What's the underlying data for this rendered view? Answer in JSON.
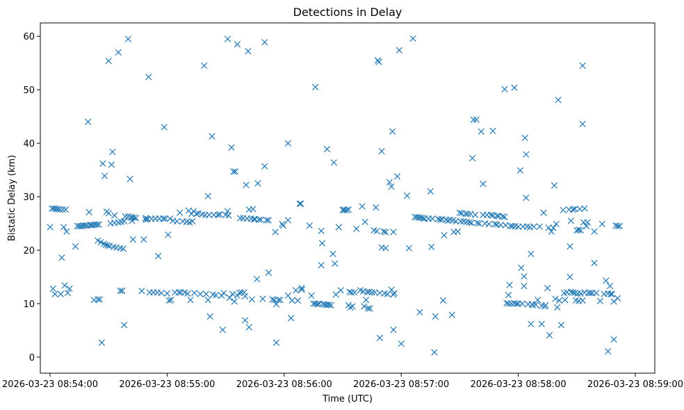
{
  "chart_data": {
    "type": "scatter",
    "title": "Detections in Delay",
    "xlabel": "Time (UTC)",
    "ylabel": "Bistatic Delay (km)",
    "marker": "x",
    "color": "#1f77b4",
    "x_unit": "seconds since 2026-03-23 08:54:00",
    "xlim": [
      -5,
      310
    ],
    "ylim": [
      -3,
      62.5
    ],
    "x_ticks": [
      {
        "value": 0,
        "label": "2026-03-23 08:54:00"
      },
      {
        "value": 60,
        "label": "2026-03-23 08:55:00"
      },
      {
        "value": 120,
        "label": "2026-03-23 08:56:00"
      },
      {
        "value": 180,
        "label": "2026-03-23 08:57:00"
      },
      {
        "value": 240,
        "label": "2026-03-23 08:58:00"
      },
      {
        "value": 300,
        "label": "2026-03-23 08:59:00"
      }
    ],
    "y_ticks": [
      {
        "value": 0,
        "label": "0"
      },
      {
        "value": 10,
        "label": "10"
      },
      {
        "value": 20,
        "label": "20"
      },
      {
        "value": 30,
        "label": "30"
      },
      {
        "value": 40,
        "label": "40"
      },
      {
        "value": 50,
        "label": "50"
      },
      {
        "value": 60,
        "label": "60"
      }
    ],
    "points": [
      [
        0,
        24.3
      ],
      [
        1,
        27.8
      ],
      [
        1.5,
        12.8
      ],
      [
        2,
        27.8
      ],
      [
        2.5,
        11.8
      ],
      [
        3,
        27.7
      ],
      [
        4,
        27.7
      ],
      [
        5,
        27.6
      ],
      [
        5.5,
        11.8
      ],
      [
        6,
        18.6
      ],
      [
        6.5,
        27.6
      ],
      [
        7,
        24.3
      ],
      [
        7.5,
        13.4
      ],
      [
        8,
        27.6
      ],
      [
        8.5,
        23.5
      ],
      [
        9,
        12.0
      ],
      [
        10,
        12.8
      ],
      [
        13,
        20.7
      ],
      [
        14,
        24.5
      ],
      [
        15,
        24.5
      ],
      [
        16,
        24.5
      ],
      [
        17,
        24.6
      ],
      [
        18,
        24.6
      ],
      [
        19,
        24.6
      ],
      [
        19.5,
        44.0
      ],
      [
        20,
        27.1
      ],
      [
        20.5,
        24.7
      ],
      [
        21,
        24.7
      ],
      [
        22,
        24.7
      ],
      [
        22.5,
        10.7
      ],
      [
        23,
        24.8
      ],
      [
        24,
        24.8
      ],
      [
        24.5,
        10.8
      ],
      [
        25,
        24.8
      ],
      [
        24.5,
        21.8
      ],
      [
        25.5,
        10.8
      ],
      [
        26,
        21.5
      ],
      [
        26.5,
        2.7
      ],
      [
        27,
        36.2
      ],
      [
        27.5,
        21.2
      ],
      [
        28,
        33.9
      ],
      [
        28.5,
        21.0
      ],
      [
        29,
        27.2
      ],
      [
        29.5,
        20.9
      ],
      [
        30,
        26.9
      ],
      [
        30,
        55.4
      ],
      [
        30.5,
        20.8
      ],
      [
        31,
        25.0
      ],
      [
        31.5,
        36.0
      ],
      [
        32,
        38.4
      ],
      [
        32.5,
        20.6
      ],
      [
        33,
        26.5
      ],
      [
        33,
        25.1
      ],
      [
        34,
        20.5
      ],
      [
        35,
        57.0
      ],
      [
        35,
        25.2
      ],
      [
        36,
        20.4
      ],
      [
        36,
        12.4
      ],
      [
        36.5,
        25.3
      ],
      [
        37,
        12.4
      ],
      [
        37.5,
        20.3
      ],
      [
        38,
        6.0
      ],
      [
        38,
        25.4
      ],
      [
        38.5,
        26.3
      ],
      [
        40,
        59.5
      ],
      [
        40,
        26.3
      ],
      [
        41,
        33.3
      ],
      [
        41.5,
        26.2
      ],
      [
        42,
        26.1
      ],
      [
        42,
        25.5
      ],
      [
        42.5,
        22.0
      ],
      [
        43,
        26.1
      ],
      [
        44,
        26.0
      ],
      [
        47,
        12.4
      ],
      [
        48,
        22.0
      ],
      [
        49,
        26.0
      ],
      [
        49,
        25.7
      ],
      [
        50,
        25.8
      ],
      [
        50.5,
        52.4
      ],
      [
        51,
        12.1
      ],
      [
        52,
        25.9
      ],
      [
        53,
        12.1
      ],
      [
        54,
        25.9
      ],
      [
        55,
        12.1
      ],
      [
        55.5,
        18.9
      ],
      [
        56,
        25.9
      ],
      [
        57,
        12.0
      ],
      [
        58,
        25.9
      ],
      [
        58.5,
        43.0
      ],
      [
        59,
        25.9
      ],
      [
        60,
        11.9
      ],
      [
        60.5,
        22.9
      ],
      [
        61,
        10.6
      ],
      [
        61.5,
        25.9
      ],
      [
        62,
        10.7
      ],
      [
        63,
        25.5
      ],
      [
        64,
        12.1
      ],
      [
        65,
        25.4
      ],
      [
        66,
        12.1
      ],
      [
        66.5,
        27.0
      ],
      [
        67,
        12.1
      ],
      [
        68,
        25.4
      ],
      [
        69,
        12.1
      ],
      [
        70,
        25.3
      ],
      [
        70.5,
        11.9
      ],
      [
        71,
        27.4
      ],
      [
        71.5,
        25.2
      ],
      [
        72,
        10.7
      ],
      [
        72.5,
        26.8
      ],
      [
        73,
        25.4
      ],
      [
        73.5,
        27.3
      ],
      [
        74,
        12.0
      ],
      [
        75,
        26.8
      ],
      [
        76,
        26.9
      ],
      [
        77,
        11.8
      ],
      [
        78,
        26.7
      ],
      [
        79,
        54.5
      ],
      [
        79.5,
        26.6
      ],
      [
        80,
        11.8
      ],
      [
        81,
        30.1
      ],
      [
        81,
        10.7
      ],
      [
        81.5,
        26.6
      ],
      [
        82,
        7.6
      ],
      [
        83,
        41.3
      ],
      [
        83.5,
        11.7
      ],
      [
        84,
        26.6
      ],
      [
        85,
        11.6
      ],
      [
        86,
        26.6
      ],
      [
        87,
        26.7
      ],
      [
        88,
        11.5
      ],
      [
        88.5,
        5.1
      ],
      [
        89,
        12.0
      ],
      [
        90,
        26.6
      ],
      [
        91,
        27.3
      ],
      [
        91,
        59.5
      ],
      [
        91.5,
        26.5
      ],
      [
        92,
        11.1
      ],
      [
        93,
        39.2
      ],
      [
        93.5,
        11.8
      ],
      [
        94,
        34.7
      ],
      [
        94.5,
        10.4
      ],
      [
        95,
        34.7
      ],
      [
        96,
        58.5
      ],
      [
        96,
        11.5
      ],
      [
        97,
        12.0
      ],
      [
        97.5,
        26.0
      ],
      [
        98,
        12.1
      ],
      [
        99,
        26.0
      ],
      [
        99.5,
        12.1
      ],
      [
        100,
        11.4
      ],
      [
        100,
        6.9
      ],
      [
        100.5,
        32.2
      ],
      [
        101,
        25.9
      ],
      [
        101.5,
        57.2
      ],
      [
        102,
        27.6
      ],
      [
        102,
        5.6
      ],
      [
        103,
        25.9
      ],
      [
        103.5,
        10.8
      ],
      [
        104,
        27.7
      ],
      [
        104.5,
        25.8
      ],
      [
        105,
        25.8
      ],
      [
        106,
        14.6
      ],
      [
        106.5,
        32.5
      ],
      [
        107,
        25.7
      ],
      [
        108,
        25.7
      ],
      [
        109,
        10.9
      ],
      [
        110,
        58.9
      ],
      [
        110,
        35.7
      ],
      [
        111,
        25.6
      ],
      [
        112,
        25.6
      ],
      [
        112,
        15.8
      ],
      [
        114,
        10.8
      ],
      [
        115,
        10.7
      ],
      [
        115.5,
        23.4
      ],
      [
        116,
        2.7
      ],
      [
        116,
        9.9
      ],
      [
        117,
        10.7
      ],
      [
        118,
        10.7
      ],
      [
        119,
        24.9
      ],
      [
        119.5,
        24.6
      ],
      [
        122,
        40.0
      ],
      [
        122,
        25.6
      ],
      [
        122,
        11.5
      ],
      [
        123.5,
        7.3
      ],
      [
        124,
        10.6
      ],
      [
        126,
        12.5
      ],
      [
        127,
        10.6
      ],
      [
        128,
        28.7
      ],
      [
        128.5,
        28.7
      ],
      [
        129,
        12.6
      ],
      [
        129,
        12.9
      ],
      [
        133,
        24.6
      ],
      [
        134,
        11.5
      ],
      [
        135,
        10.0
      ],
      [
        136,
        50.5
      ],
      [
        136,
        10.0
      ],
      [
        137,
        9.9
      ],
      [
        138,
        10.0
      ],
      [
        139,
        23.6
      ],
      [
        139,
        17.2
      ],
      [
        139.5,
        21.3
      ],
      [
        140,
        9.9
      ],
      [
        141,
        9.8
      ],
      [
        142,
        38.9
      ],
      [
        142,
        9.8
      ],
      [
        143,
        9.8
      ],
      [
        144,
        9.7
      ],
      [
        145,
        19.3
      ],
      [
        145.5,
        36.4
      ],
      [
        146,
        17.5
      ],
      [
        146.5,
        11.7
      ],
      [
        148,
        24.3
      ],
      [
        149,
        12.5
      ],
      [
        150,
        27.5
      ],
      [
        150.5,
        27.6
      ],
      [
        151,
        27.5
      ],
      [
        152,
        27.5
      ],
      [
        153,
        27.6
      ],
      [
        153,
        9.7
      ],
      [
        153.5,
        12.2
      ],
      [
        154,
        9.3
      ],
      [
        154.5,
        12.1
      ],
      [
        155,
        9.5
      ],
      [
        156,
        12.1
      ],
      [
        157,
        24.0
      ],
      [
        159,
        12.5
      ],
      [
        160,
        28.2
      ],
      [
        160.5,
        12.3
      ],
      [
        161,
        9.5
      ],
      [
        161.5,
        25.3
      ],
      [
        162,
        10.7
      ],
      [
        162.5,
        12.2
      ],
      [
        163,
        9.1
      ],
      [
        163.5,
        12.2
      ],
      [
        164,
        9.1
      ],
      [
        165,
        12.1
      ],
      [
        166,
        23.7
      ],
      [
        166.5,
        12.1
      ],
      [
        167,
        28.0
      ],
      [
        167.5,
        23.6
      ],
      [
        168,
        55.5
      ],
      [
        168.5,
        55.2
      ],
      [
        169,
        12.0
      ],
      [
        169,
        3.6
      ],
      [
        170,
        38.5
      ],
      [
        170,
        20.5
      ],
      [
        171,
        23.5
      ],
      [
        171.5,
        11.9
      ],
      [
        172,
        23.4
      ],
      [
        172,
        20.4
      ],
      [
        173,
        11.8
      ],
      [
        174,
        32.7
      ],
      [
        175,
        31.9
      ],
      [
        175,
        12.6
      ],
      [
        175.5,
        42.2
      ],
      [
        176,
        23.4
      ],
      [
        176,
        11.7
      ],
      [
        176,
        5.1
      ],
      [
        176.5,
        12.0
      ],
      [
        178,
        33.8
      ],
      [
        179,
        57.4
      ],
      [
        180,
        2.5
      ],
      [
        183,
        30.2
      ],
      [
        184,
        20.4
      ],
      [
        186,
        59.6
      ],
      [
        187,
        26.2
      ],
      [
        188,
        26.2
      ],
      [
        189,
        26.1
      ],
      [
        189.5,
        8.4
      ],
      [
        190,
        26.1
      ],
      [
        191,
        26.0
      ],
      [
        192,
        25.9
      ],
      [
        194,
        25.9
      ],
      [
        195,
        31.0
      ],
      [
        195.5,
        20.6
      ],
      [
        196,
        25.9
      ],
      [
        197,
        0.9
      ],
      [
        197.5,
        7.6
      ],
      [
        199,
        25.8
      ],
      [
        200,
        25.7
      ],
      [
        201,
        25.8
      ],
      [
        201.5,
        10.6
      ],
      [
        202,
        22.8
      ],
      [
        203,
        25.7
      ],
      [
        204,
        25.5
      ],
      [
        205,
        25.7
      ],
      [
        206,
        7.9
      ],
      [
        206.5,
        25.6
      ],
      [
        207,
        23.4
      ],
      [
        208,
        25.4
      ],
      [
        209,
        23.5
      ],
      [
        210,
        27.0
      ],
      [
        210.5,
        25.4
      ],
      [
        211,
        26.9
      ],
      [
        212,
        25.4
      ],
      [
        213,
        26.8
      ],
      [
        213.5,
        25.3
      ],
      [
        214,
        26.8
      ],
      [
        215,
        25.2
      ],
      [
        215.5,
        26.8
      ],
      [
        216,
        25.1
      ],
      [
        216.5,
        37.2
      ],
      [
        217,
        44.4
      ],
      [
        218,
        26.6
      ],
      [
        218.5,
        44.4
      ],
      [
        219,
        25.1
      ],
      [
        220,
        25.0
      ],
      [
        221,
        42.2
      ],
      [
        222,
        26.6
      ],
      [
        222,
        32.4
      ],
      [
        223,
        25.0
      ],
      [
        224,
        26.6
      ],
      [
        225,
        24.9
      ],
      [
        226,
        26.6
      ],
      [
        227,
        26.5
      ],
      [
        227,
        42.3
      ],
      [
        228,
        24.9
      ],
      [
        229,
        26.4
      ],
      [
        229,
        24.8
      ],
      [
        230,
        26.4
      ],
      [
        231,
        24.7
      ],
      [
        232,
        26.3
      ],
      [
        233,
        26.2
      ],
      [
        233,
        50.1
      ],
      [
        233.5,
        24.7
      ],
      [
        234,
        10.1
      ],
      [
        235,
        11.6
      ],
      [
        235,
        10.0
      ],
      [
        235.5,
        13.5
      ],
      [
        236,
        24.5
      ],
      [
        236.5,
        10.0
      ],
      [
        237,
        24.5
      ],
      [
        238,
        50.4
      ],
      [
        238,
        10.1
      ],
      [
        238.5,
        24.5
      ],
      [
        239,
        10.0
      ],
      [
        240,
        24.4
      ],
      [
        240,
        10.0
      ],
      [
        241,
        34.9
      ],
      [
        241.5,
        16.7
      ],
      [
        242,
        10.0
      ],
      [
        242.5,
        24.4
      ],
      [
        243,
        15.1
      ],
      [
        243,
        13.3
      ],
      [
        243.5,
        41.0
      ],
      [
        244,
        37.9
      ],
      [
        244,
        29.8
      ],
      [
        244.5,
        24.4
      ],
      [
        245,
        9.9
      ],
      [
        246,
        24.3
      ],
      [
        246.5,
        19.3
      ],
      [
        246.5,
        6.2
      ],
      [
        247,
        9.9
      ],
      [
        247.5,
        9.7
      ],
      [
        248,
        24.4
      ],
      [
        249,
        9.8
      ],
      [
        250,
        10.7
      ],
      [
        251,
        24.4
      ],
      [
        252,
        6.2
      ],
      [
        252,
        9.6
      ],
      [
        253,
        27.0
      ],
      [
        253.5,
        9.5
      ],
      [
        254,
        9.7
      ],
      [
        255,
        12.9
      ],
      [
        255.5,
        24.2
      ],
      [
        256,
        4.1
      ],
      [
        257,
        23.5
      ],
      [
        258,
        24.2
      ],
      [
        258.5,
        32.1
      ],
      [
        259,
        10.9
      ],
      [
        259.5,
        24.9
      ],
      [
        260,
        9.3
      ],
      [
        260.5,
        48.1
      ],
      [
        261,
        10.6
      ],
      [
        262,
        6.0
      ],
      [
        263,
        27.5
      ],
      [
        263.5,
        12.0
      ],
      [
        264,
        10.7
      ],
      [
        265,
        12.1
      ],
      [
        266,
        27.6
      ],
      [
        266.5,
        20.7
      ],
      [
        266.5,
        15.0
      ],
      [
        267,
        12.2
      ],
      [
        267,
        25.5
      ],
      [
        268,
        27.6
      ],
      [
        268,
        12.1
      ],
      [
        269,
        27.7
      ],
      [
        269,
        12.0
      ],
      [
        269.5,
        10.6
      ],
      [
        270,
        23.7
      ],
      [
        270.5,
        11.9
      ],
      [
        271,
        10.5
      ],
      [
        271,
        23.8
      ],
      [
        271.5,
        27.7
      ],
      [
        272,
        11.9
      ],
      [
        272,
        23.7
      ],
      [
        273,
        43.6
      ],
      [
        273,
        54.5
      ],
      [
        273,
        10.6
      ],
      [
        273.5,
        25.2
      ],
      [
        274,
        27.8
      ],
      [
        274,
        12.1
      ],
      [
        275,
        24.5
      ],
      [
        275.5,
        25.2
      ],
      [
        276,
        12.0
      ],
      [
        277,
        12.0
      ],
      [
        278,
        12.0
      ],
      [
        279,
        17.6
      ],
      [
        279,
        23.5
      ],
      [
        280,
        12.0
      ],
      [
        282,
        10.5
      ],
      [
        283,
        24.9
      ],
      [
        284,
        11.8
      ],
      [
        285,
        14.3
      ],
      [
        286,
        11.9
      ],
      [
        286,
        1.1
      ],
      [
        287,
        13.3
      ],
      [
        287.5,
        11.8
      ],
      [
        288,
        11.8
      ],
      [
        289,
        10.4
      ],
      [
        289,
        3.3
      ],
      [
        290,
        24.6
      ],
      [
        291,
        11.0
      ],
      [
        291,
        24.5
      ],
      [
        292,
        24.5
      ]
    ]
  }
}
